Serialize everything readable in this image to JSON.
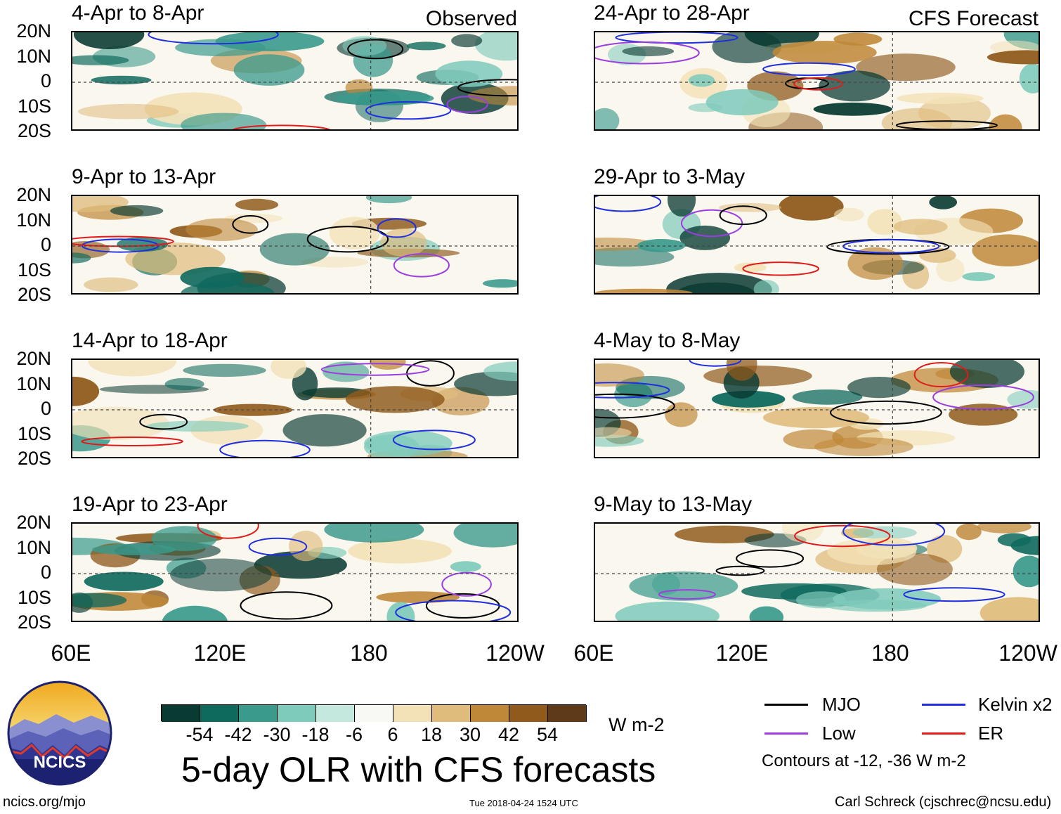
{
  "chart_data": {
    "type": "heatmap",
    "title": "5-day OLR with CFS forecasts",
    "lat_ticks": [
      "20N",
      "10N",
      "0",
      "10S",
      "20S"
    ],
    "lon_ticks": [
      "60E",
      "120E",
      "180",
      "120W"
    ],
    "lon_range": [
      60,
      240
    ],
    "lat_range": [
      -20,
      20
    ],
    "observed_label": "Observed",
    "forecast_label": "CFS Forecast",
    "observed_panels": [
      {
        "period": "4-Apr to 8-Apr"
      },
      {
        "period": "9-Apr to 13-Apr"
      },
      {
        "period": "14-Apr to 18-Apr"
      },
      {
        "period": "19-Apr to 23-Apr"
      }
    ],
    "forecast_panels": [
      {
        "period": "24-Apr to 28-Apr"
      },
      {
        "period": "29-Apr to 3-May"
      },
      {
        "period": "4-May to 8-May"
      },
      {
        "period": "9-May to 13-May"
      }
    ],
    "colorbar": {
      "levels": [
        "-54",
        "-42",
        "-30",
        "-18",
        "-6",
        "6",
        "18",
        "30",
        "42",
        "54"
      ],
      "colors": [
        "#0a3b33",
        "#0f6a5e",
        "#3a9a8c",
        "#7fcbbb",
        "#c4e8dd",
        "#f8f8f5",
        "#f3e2b8",
        "#dfbc7c",
        "#bf8838",
        "#8f5a1c",
        "#5e3a18"
      ],
      "units": "W m-2"
    },
    "legend": [
      {
        "label": "MJO",
        "color": "#000000"
      },
      {
        "label": "Kelvin x2",
        "color": "#1f2fe0"
      },
      {
        "label": "Low",
        "color": "#9b3ee0"
      },
      {
        "label": "ER",
        "color": "#e01b1b"
      }
    ],
    "contours_note": "Contours at -12, -36 W m-2"
  },
  "footer": {
    "logo_text": "NCICS",
    "url": "ncics.org/mjo",
    "timestamp": "Tue 2018-04-24 1524 UTC",
    "credit": "Carl Schreck (cjschrec@ncsu.edu)"
  }
}
